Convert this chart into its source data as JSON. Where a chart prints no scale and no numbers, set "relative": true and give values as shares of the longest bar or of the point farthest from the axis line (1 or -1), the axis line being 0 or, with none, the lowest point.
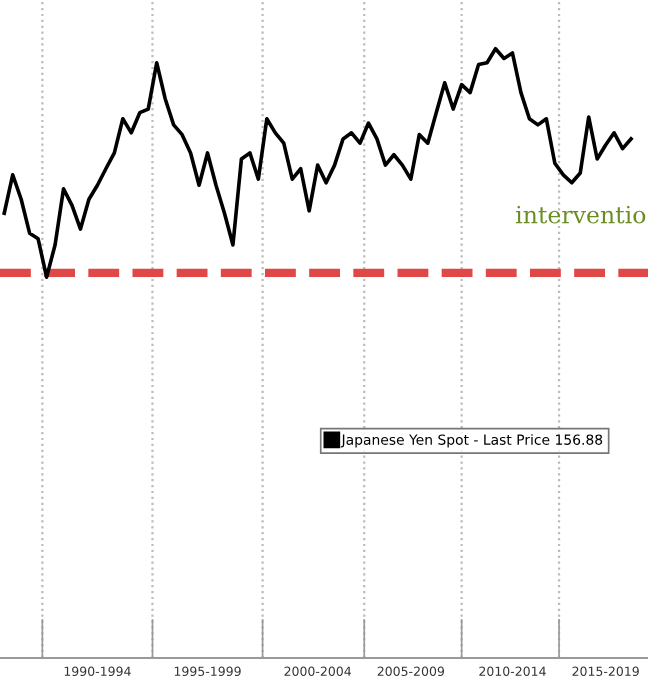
{
  "chart_data": {
    "type": "line",
    "relative": true,
    "categories": [
      null,
      null,
      null,
      null,
      null,
      null,
      null,
      null,
      null,
      null,
      null,
      "1990-1994",
      null,
      null,
      null,
      null,
      null,
      null,
      null,
      null,
      null,
      null,
      null,
      null,
      "1995-1999",
      null,
      null,
      null,
      null,
      null,
      null,
      null,
      null,
      null,
      null,
      null,
      null,
      "2000-2004",
      null,
      null,
      null,
      null,
      null,
      null,
      null,
      null,
      null,
      null,
      "2005-2009",
      null,
      null,
      null,
      null,
      null,
      null,
      null,
      null,
      null,
      null,
      null,
      "2010-2014",
      null,
      null,
      null,
      null,
      null,
      null,
      null,
      null,
      null,
      null,
      "2015-2019",
      null,
      null,
      null
    ],
    "series": [
      {
        "name": "Japanese Yen Spot - Last Price 156.88",
        "color": "#000000",
        "values": [
          0.73,
          0.793,
          0.753,
          0.697,
          0.688,
          0.625,
          0.678,
          0.77,
          0.743,
          0.704,
          0.753,
          0.776,
          0.803,
          0.829,
          0.885,
          0.862,
          0.895,
          0.901,
          0.977,
          0.918,
          0.875,
          0.859,
          0.829,
          0.776,
          0.829,
          0.776,
          0.73,
          0.678,
          0.819,
          0.829,
          0.786,
          0.885,
          0.862,
          0.845,
          0.786,
          0.803,
          0.734,
          0.809,
          0.78,
          0.809,
          0.852,
          0.862,
          0.845,
          0.878,
          0.852,
          0.809,
          0.826,
          0.809,
          0.786,
          0.859,
          0.845,
          0.895,
          0.944,
          0.901,
          0.941,
          0.928,
          0.974,
          0.977,
          1.0,
          0.984,
          0.993,
          0.928,
          0.885,
          0.875,
          0.885,
          0.812,
          0.793,
          0.78,
          0.796,
          0.888,
          0.819,
          0.842,
          0.862,
          0.836,
          0.852
        ]
      }
    ],
    "ref_lines": [
      {
        "axis": "y",
        "value": 0.632,
        "color": "#e04848",
        "line_style": "dashed"
      }
    ],
    "annotations": [
      "interventio"
    ],
    "grid": "x",
    "legend": "center right",
    "marker": "none",
    "line_style": "solid"
  }
}
